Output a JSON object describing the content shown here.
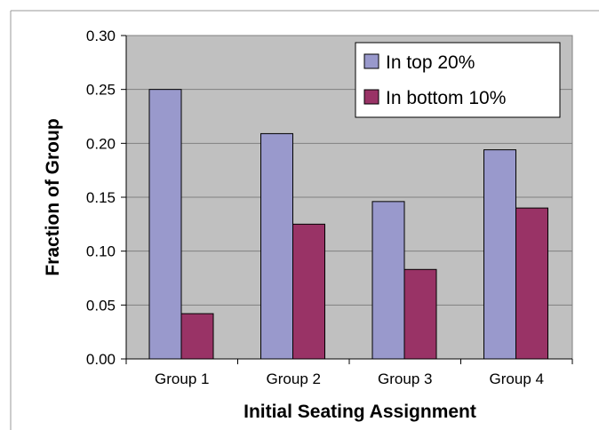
{
  "chart_data": {
    "type": "bar",
    "categories": [
      "Group 1",
      "Group 2",
      "Group 3",
      "Group 4"
    ],
    "series": [
      {
        "name": "In top 20%",
        "values": [
          0.25,
          0.209,
          0.146,
          0.194
        ],
        "color": "#9999cc"
      },
      {
        "name": "In bottom 10%",
        "values": [
          0.042,
          0.125,
          0.083,
          0.14
        ],
        "color": "#993366"
      }
    ],
    "title": "",
    "xlabel": "Initial Seating Assignment",
    "ylabel": "Fraction of Group",
    "ylim": [
      0,
      0.3
    ],
    "yticks": [
      "0.00",
      "0.05",
      "0.10",
      "0.15",
      "0.20",
      "0.25",
      "0.30"
    ],
    "grid": true,
    "legend": "top-right",
    "plot_background": "#c0c0c0"
  }
}
